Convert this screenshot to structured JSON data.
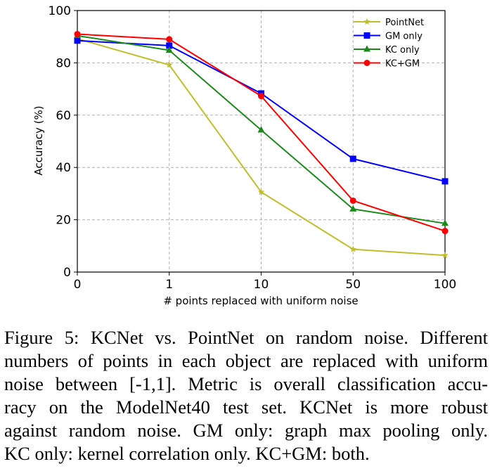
{
  "chart_data": {
    "type": "line",
    "categories": [
      "0",
      "1",
      "10",
      "50",
      "100"
    ],
    "xlabel": "# points replaced with uniform noise",
    "ylabel": "Accuracy (%)",
    "ylim": [
      0,
      100
    ],
    "yticks": [
      "0",
      "20",
      "40",
      "60",
      "80",
      "100"
    ],
    "grid": true,
    "legend_position": "top-right",
    "series": [
      {
        "name": "PointNet",
        "color": "#bfbf2a",
        "marker": "star",
        "values": [
          89.2,
          79.2,
          30.6,
          8.7,
          6.4
        ]
      },
      {
        "name": "GM only",
        "color": "#0000ff",
        "marker": "square",
        "values": [
          88.5,
          86.6,
          68.3,
          43.3,
          34.7
        ]
      },
      {
        "name": "KC only",
        "color": "#1b8a1b",
        "marker": "triangle",
        "values": [
          90.4,
          84.8,
          54.3,
          24.1,
          18.6
        ]
      },
      {
        "name": "KC+GM",
        "color": "#ff0000",
        "marker": "circle",
        "values": [
          91.0,
          89.0,
          67.3,
          27.3,
          15.7
        ]
      }
    ]
  },
  "caption": {
    "lines": [
      "Figure 5: KCNet vs. PointNet on random noise. Different",
      "numbers of points in each object are replaced with uniform",
      "noise between [-1,1]. Metric is overall classification accu-",
      "racy on the ModelNet40 test set. KCNet is more robust",
      "against random noise. GM only: graph max pooling only.",
      "KC only: kernel correlation only. KC+GM: both."
    ]
  }
}
